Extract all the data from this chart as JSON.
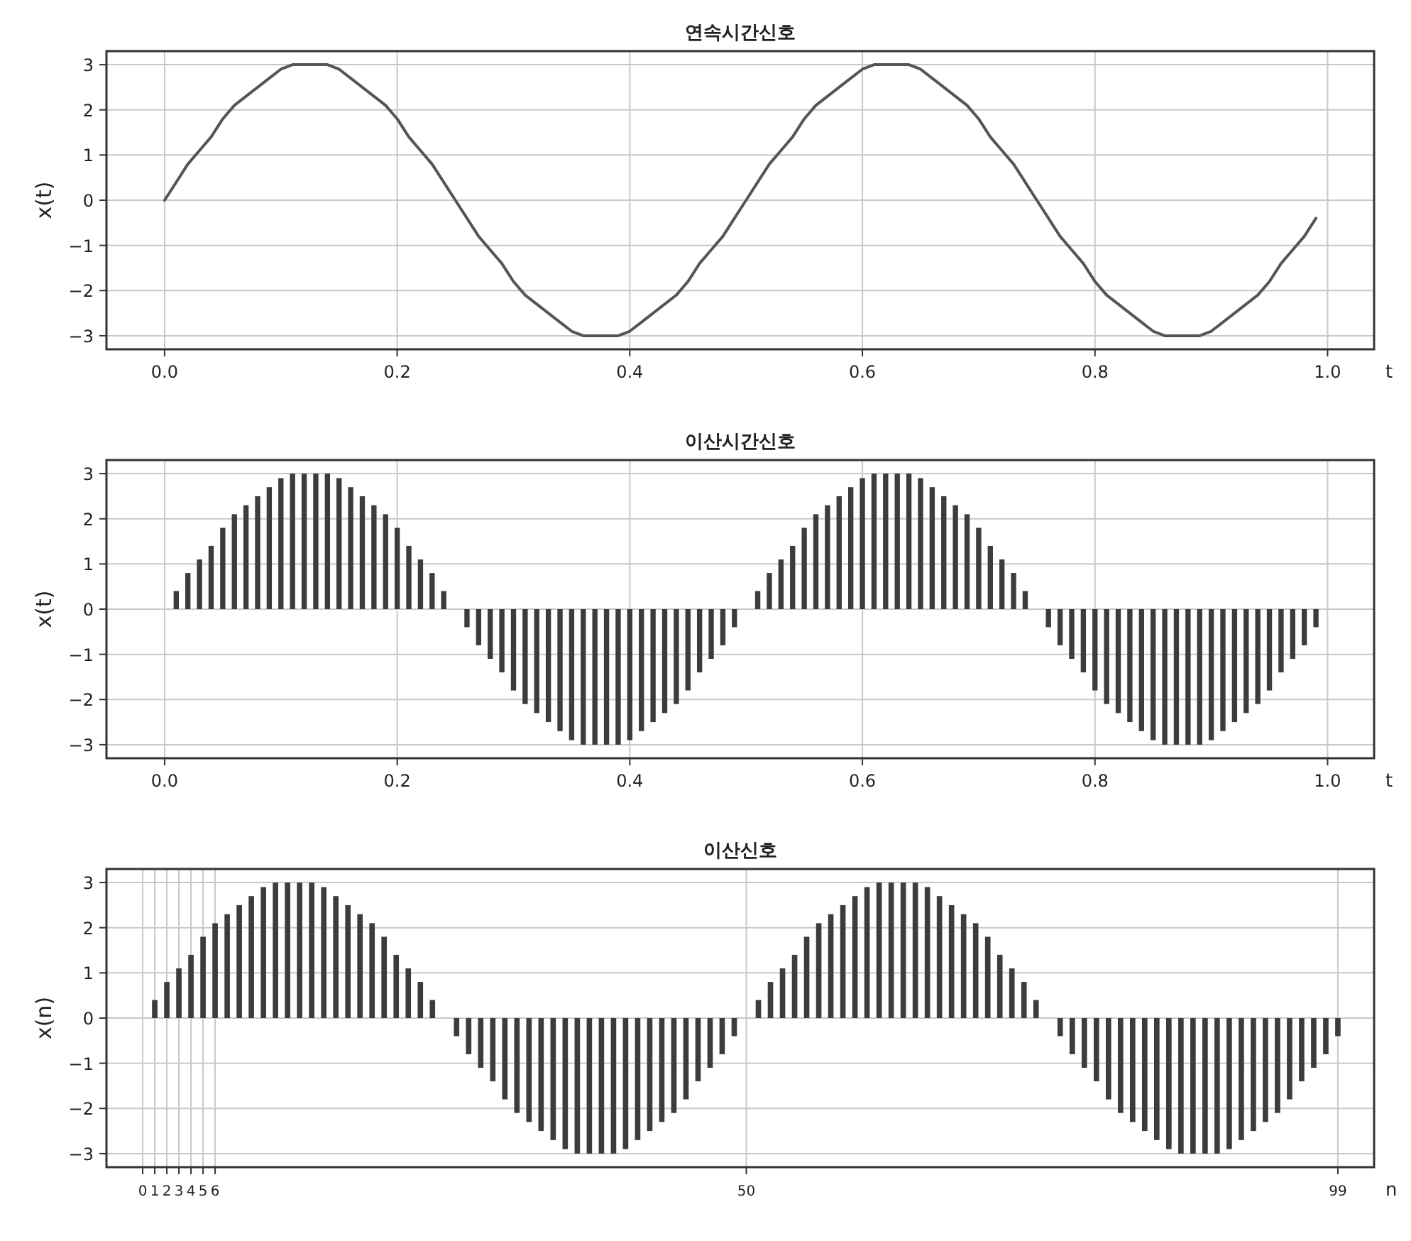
{
  "chart_data": [
    {
      "type": "line",
      "title": "연속시간신호",
      "xlabel": "t",
      "ylabel": "x(t)",
      "color": "#555555",
      "grid": true,
      "x": [
        0,
        0.01,
        0.02,
        0.03,
        0.04,
        0.05,
        0.06,
        0.07,
        0.08,
        0.09,
        0.1,
        0.11,
        0.12,
        0.13,
        0.14,
        0.15,
        0.16,
        0.17,
        0.18,
        0.19,
        0.2,
        0.21,
        0.22,
        0.23,
        0.24,
        0.25,
        0.26,
        0.27,
        0.28,
        0.29,
        0.3,
        0.31,
        0.32,
        0.33,
        0.34,
        0.35,
        0.36,
        0.37,
        0.38,
        0.39,
        0.4,
        0.41,
        0.42,
        0.43,
        0.44,
        0.45,
        0.46,
        0.47,
        0.48,
        0.49,
        0.5,
        0.51,
        0.52,
        0.53,
        0.54,
        0.55,
        0.56,
        0.57,
        0.58,
        0.59,
        0.6,
        0.61,
        0.62,
        0.63,
        0.64,
        0.65,
        0.66,
        0.67,
        0.68,
        0.69,
        0.7,
        0.71,
        0.72,
        0.73,
        0.74,
        0.75,
        0.76,
        0.77,
        0.78,
        0.79,
        0.8,
        0.81,
        0.82,
        0.83,
        0.84,
        0.85,
        0.86,
        0.87,
        0.88,
        0.89,
        0.9,
        0.91,
        0.92,
        0.93,
        0.94,
        0.95,
        0.96,
        0.97,
        0.98,
        0.99
      ],
      "values": [
        0,
        0.4,
        0.8,
        1.1,
        1.4,
        1.8,
        2.1,
        2.3,
        2.5,
        2.7,
        2.9,
        3.0,
        3.0,
        3.0,
        3.0,
        2.9,
        2.7,
        2.5,
        2.3,
        2.1,
        1.8,
        1.4,
        1.1,
        0.8,
        0.4,
        0,
        -0.4,
        -0.8,
        -1.1,
        -1.4,
        -1.8,
        -2.1,
        -2.3,
        -2.5,
        -2.7,
        -2.9,
        -3.0,
        -3.0,
        -3.0,
        -3.0,
        -2.9,
        -2.7,
        -2.5,
        -2.3,
        -2.1,
        -1.8,
        -1.4,
        -1.1,
        -0.8,
        -0.4,
        0,
        0.4,
        0.8,
        1.1,
        1.4,
        1.8,
        2.1,
        2.3,
        2.5,
        2.7,
        2.9,
        3.0,
        3.0,
        3.0,
        3.0,
        2.9,
        2.7,
        2.5,
        2.3,
        2.1,
        1.8,
        1.4,
        1.1,
        0.8,
        0.4,
        0,
        -0.4,
        -0.8,
        -1.1,
        -1.4,
        -1.8,
        -2.1,
        -2.3,
        -2.5,
        -2.7,
        -2.9,
        -3.0,
        -3.0,
        -3.0,
        -3.0,
        -2.9,
        -2.7,
        -2.5,
        -2.3,
        -2.1,
        -1.8,
        -1.4,
        -1.1,
        -0.8,
        -0.4
      ],
      "xlim": [
        -0.05,
        1.04
      ],
      "ylim": [
        -3.3,
        3.3
      ],
      "xticks": [
        {
          "value": 0,
          "label": "0.0"
        },
        {
          "value": 0.2,
          "label": "0.2"
        },
        {
          "value": 0.4,
          "label": "0.4"
        },
        {
          "value": 0.6,
          "label": "0.6"
        },
        {
          "value": 0.8,
          "label": "0.8"
        },
        {
          "value": 1,
          "label": "1.0"
        }
      ],
      "yticks": [
        -3,
        -2,
        -1,
        0,
        1,
        2,
        3
      ]
    },
    {
      "type": "bar",
      "title": "이산시간신호",
      "xlabel": "t",
      "ylabel": "x(t)",
      "color": "#3c3c3c",
      "grid": true,
      "x": [
        0,
        0.01,
        0.02,
        0.03,
        0.04,
        0.05,
        0.06,
        0.07,
        0.08,
        0.09,
        0.1,
        0.11,
        0.12,
        0.13,
        0.14,
        0.15,
        0.16,
        0.17,
        0.18,
        0.19,
        0.2,
        0.21,
        0.22,
        0.23,
        0.24,
        0.25,
        0.26,
        0.27,
        0.28,
        0.29,
        0.3,
        0.31,
        0.32,
        0.33,
        0.34,
        0.35,
        0.36,
        0.37,
        0.38,
        0.39,
        0.4,
        0.41,
        0.42,
        0.43,
        0.44,
        0.45,
        0.46,
        0.47,
        0.48,
        0.49,
        0.5,
        0.51,
        0.52,
        0.53,
        0.54,
        0.55,
        0.56,
        0.57,
        0.58,
        0.59,
        0.6,
        0.61,
        0.62,
        0.63,
        0.64,
        0.65,
        0.66,
        0.67,
        0.68,
        0.69,
        0.7,
        0.71,
        0.72,
        0.73,
        0.74,
        0.75,
        0.76,
        0.77,
        0.78,
        0.79,
        0.8,
        0.81,
        0.82,
        0.83,
        0.84,
        0.85,
        0.86,
        0.87,
        0.88,
        0.89,
        0.9,
        0.91,
        0.92,
        0.93,
        0.94,
        0.95,
        0.96,
        0.97,
        0.98,
        0.99
      ],
      "values": [
        0,
        0.4,
        0.8,
        1.1,
        1.4,
        1.8,
        2.1,
        2.3,
        2.5,
        2.7,
        2.9,
        3.0,
        3.0,
        3.0,
        3.0,
        2.9,
        2.7,
        2.5,
        2.3,
        2.1,
        1.8,
        1.4,
        1.1,
        0.8,
        0.4,
        0,
        -0.4,
        -0.8,
        -1.1,
        -1.4,
        -1.8,
        -2.1,
        -2.3,
        -2.5,
        -2.7,
        -2.9,
        -3.0,
        -3.0,
        -3.0,
        -3.0,
        -2.9,
        -2.7,
        -2.5,
        -2.3,
        -2.1,
        -1.8,
        -1.4,
        -1.1,
        -0.8,
        -0.4,
        0,
        0.4,
        0.8,
        1.1,
        1.4,
        1.8,
        2.1,
        2.3,
        2.5,
        2.7,
        2.9,
        3.0,
        3.0,
        3.0,
        3.0,
        2.9,
        2.7,
        2.5,
        2.3,
        2.1,
        1.8,
        1.4,
        1.1,
        0.8,
        0.4,
        0,
        -0.4,
        -0.8,
        -1.1,
        -1.4,
        -1.8,
        -2.1,
        -2.3,
        -2.5,
        -2.7,
        -2.9,
        -3.0,
        -3.0,
        -3.0,
        -3.0,
        -2.9,
        -2.7,
        -2.5,
        -2.3,
        -2.1,
        -1.8,
        -1.4,
        -1.1,
        -0.8,
        -0.4
      ],
      "xlim": [
        -0.05,
        1.04
      ],
      "ylim": [
        -3.3,
        3.3
      ],
      "xticks": [
        {
          "value": 0,
          "label": "0.0"
        },
        {
          "value": 0.2,
          "label": "0.2"
        },
        {
          "value": 0.4,
          "label": "0.4"
        },
        {
          "value": 0.6,
          "label": "0.6"
        },
        {
          "value": 0.8,
          "label": "0.8"
        },
        {
          "value": 1,
          "label": "1.0"
        }
      ],
      "yticks": [
        -3,
        -2,
        -1,
        0,
        1,
        2,
        3
      ]
    },
    {
      "type": "bar",
      "title": "이산신호",
      "xlabel": "n",
      "ylabel": "x(n)",
      "color": "#3c3c3c",
      "grid": true,
      "categories": [
        "0",
        "1",
        "2",
        "3",
        "4",
        "5",
        "6",
        null,
        null,
        null,
        null,
        null,
        null,
        null,
        null,
        null,
        null,
        null,
        null,
        null,
        null,
        null,
        null,
        null,
        null,
        null,
        null,
        null,
        null,
        null,
        null,
        null,
        null,
        null,
        null,
        null,
        null,
        null,
        null,
        null,
        null,
        null,
        null,
        null,
        null,
        null,
        null,
        null,
        null,
        null,
        "50",
        null,
        null,
        null,
        null,
        null,
        null,
        null,
        null,
        null,
        null,
        null,
        null,
        null,
        null,
        null,
        null,
        null,
        null,
        null,
        null,
        null,
        null,
        null,
        null,
        null,
        null,
        null,
        null,
        null,
        null,
        null,
        null,
        null,
        null,
        null,
        null,
        null,
        null,
        null,
        null,
        null,
        null,
        null,
        null,
        null,
        null,
        null,
        null,
        "99"
      ],
      "values": [
        0,
        0.4,
        0.8,
        1.1,
        1.4,
        1.8,
        2.1,
        2.3,
        2.5,
        2.7,
        2.9,
        3.0,
        3.0,
        3.0,
        3.0,
        2.9,
        2.7,
        2.5,
        2.3,
        2.1,
        1.8,
        1.4,
        1.1,
        0.8,
        0.4,
        0,
        -0.4,
        -0.8,
        -1.1,
        -1.4,
        -1.8,
        -2.1,
        -2.3,
        -2.5,
        -2.7,
        -2.9,
        -3.0,
        -3.0,
        -3.0,
        -3.0,
        -2.9,
        -2.7,
        -2.5,
        -2.3,
        -2.1,
        -1.8,
        -1.4,
        -1.1,
        -0.8,
        -0.4,
        0,
        0.4,
        0.8,
        1.1,
        1.4,
        1.8,
        2.1,
        2.3,
        2.5,
        2.7,
        2.9,
        3.0,
        3.0,
        3.0,
        3.0,
        2.9,
        2.7,
        2.5,
        2.3,
        2.1,
        1.8,
        1.4,
        1.1,
        0.8,
        0.4,
        0,
        -0.4,
        -0.8,
        -1.1,
        -1.4,
        -1.8,
        -2.1,
        -2.3,
        -2.5,
        -2.7,
        -2.9,
        -3.0,
        -3.0,
        -3.0,
        -3.0,
        -2.9,
        -2.7,
        -2.5,
        -2.3,
        -2.1,
        -1.8,
        -1.4,
        -1.1,
        -0.8,
        -0.4
      ],
      "ylim": [
        -3.3,
        3.3
      ],
      "yticks": [
        -3,
        -2,
        -1,
        0,
        1,
        2,
        3
      ]
    }
  ]
}
